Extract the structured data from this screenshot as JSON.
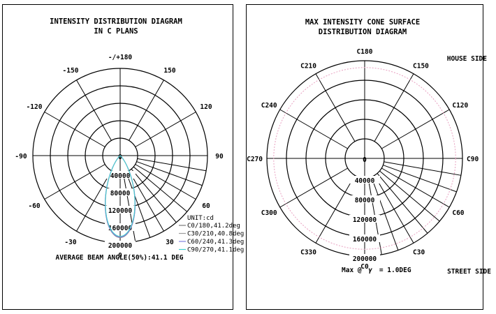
{
  "chart_data": [
    {
      "type": "polar",
      "title": "INTENSITY DISTRIBUTION DIAGRAM",
      "subtitle": "IN C PLANS",
      "unit_label": "UNIT:cd",
      "angle_labels": [
        "-/+180",
        "150",
        "120",
        "90",
        "60",
        "30",
        "0",
        "-30",
        "-60",
        "-90",
        "-120",
        "-150"
      ],
      "angle_values": [
        180,
        150,
        120,
        90,
        60,
        30,
        0,
        -30,
        -60,
        -90,
        -120,
        -150
      ],
      "radial_ticks": [
        "0",
        "40000",
        "80000",
        "120000",
        "160000",
        "200000"
      ],
      "radial_values": [
        0,
        40000,
        80000,
        120000,
        160000,
        200000
      ],
      "rlim": [
        0,
        200000
      ],
      "series": [
        {
          "name": "C0/180,41.2deg",
          "color": "#7a7a7a",
          "peak": 188000,
          "half_angle": 20.6
        },
        {
          "name": "C30/210,40.8deg",
          "color": "#9c9c9c",
          "peak": 186000,
          "half_angle": 20.4
        },
        {
          "name": "C60/240,41.3deg",
          "color": "#8080e0",
          "peak": 187000,
          "half_angle": 20.65
        },
        {
          "name": "C90/270,41.1deg",
          "color": "#40d0d0",
          "peak": 185000,
          "half_angle": 20.55
        }
      ],
      "caption": "AVERAGE BEAM ANGLE(50%):41.1 DEG"
    },
    {
      "type": "polar",
      "title": "MAX INTENSITY CONE SURFACE",
      "subtitle": "DISTRIBUTION DIAGRAM",
      "angle_labels": [
        "C180",
        "C150",
        "C120",
        "C90",
        "C60",
        "C30",
        "C0",
        "C330",
        "C300",
        "C270",
        "C240",
        "C210"
      ],
      "angle_values": [
        180,
        150,
        120,
        90,
        60,
        30,
        0,
        -30,
        -60,
        -90,
        -120,
        -150
      ],
      "radial_ticks": [
        "0",
        "40000",
        "80000",
        "120000",
        "160000",
        "200000"
      ],
      "radial_values": [
        0,
        40000,
        80000,
        120000,
        160000,
        200000
      ],
      "rlim": [
        0,
        200000
      ],
      "series": [
        {
          "color": "#e8a0c0",
          "value": 186000
        }
      ],
      "house_label": "HOUSE SIDE",
      "street_label": "STREET SIDE",
      "caption_prefix": "Max @",
      "caption_symbol": "γ",
      "caption_suffix": "= 1.0DEG"
    }
  ]
}
